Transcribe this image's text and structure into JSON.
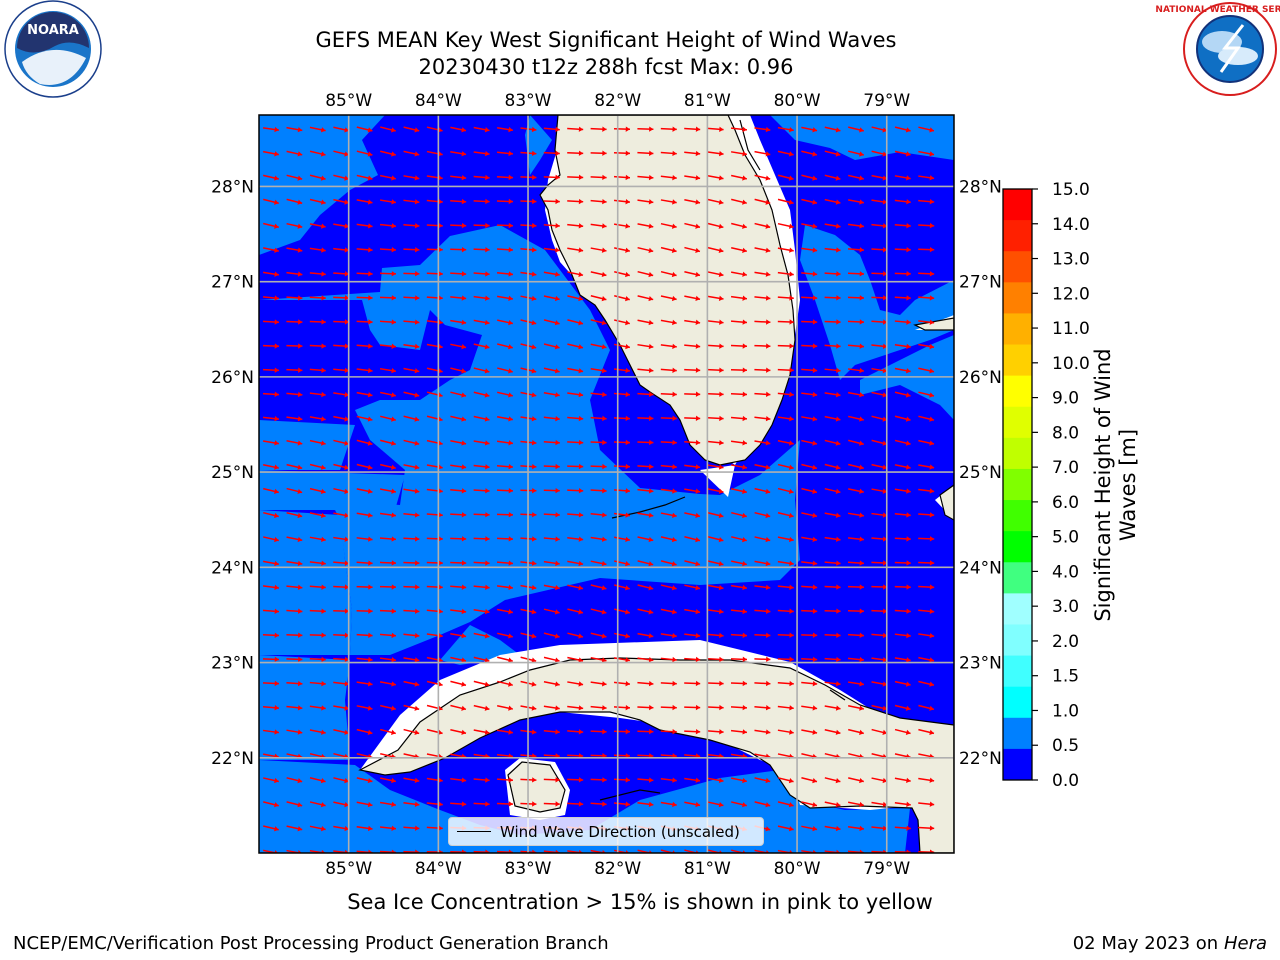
{
  "title": {
    "line1": "GEFS MEAN Key West Significant Height of Wind Waves",
    "line2": "20230430 t12z 288h fcst   Max: 0.96"
  },
  "logos": {
    "left": {
      "text": "NOARA",
      "ring_text": "NATIONAL OCEANIC AND ATMOSPHERIC ADMINISTRATION",
      "bottom_text": "U.S. DEPARTMENT OF COMMERCE"
    },
    "right": {
      "ring_text": "NATIONAL WEATHER SERVICE"
    }
  },
  "map": {
    "lon_ticks": [
      "85°W",
      "84°W",
      "83°W",
      "82°W",
      "81°W",
      "80°W",
      "79°W"
    ],
    "lon_values": [
      -85,
      -84,
      -83,
      -82,
      -81,
      -80,
      -79
    ],
    "lat_ticks": [
      "28°N",
      "27°N",
      "26°N",
      "25°N",
      "24°N",
      "23°N",
      "22°N"
    ],
    "lat_values": [
      28,
      27,
      26,
      25,
      24,
      23,
      22
    ],
    "lon_range": [
      -86.0,
      -78.25
    ],
    "lat_range": [
      21.0,
      28.75
    ],
    "colors": {
      "land": "#eeedde",
      "band_0": "#0000ff",
      "band_05": "#0080ff",
      "arrow": "#ff0000",
      "grid": "#b0b0b0",
      "coast": "#000000"
    },
    "arrow_icon": "red-arrow-icon"
  },
  "colorbar": {
    "ticks": [
      "0.0",
      "0.5",
      "1.0",
      "1.5",
      "2.0",
      "3.0",
      "4.0",
      "5.0",
      "6.0",
      "7.0",
      "8.0",
      "9.0",
      "10.0",
      "11.0",
      "12.0",
      "13.0",
      "14.0",
      "15.0"
    ],
    "colors": [
      "#0000ff",
      "#0080ff",
      "#00ffff",
      "#40ffff",
      "#80ffff",
      "#a0ffff",
      "#40ff80",
      "#00ff00",
      "#40ff00",
      "#80ff00",
      "#c0ff00",
      "#e0ff00",
      "#ffff00",
      "#ffd000",
      "#ffb000",
      "#ff8000",
      "#ff5000",
      "#ff2000",
      "#ff0000"
    ],
    "title_line1": "Significant Height of Wind",
    "title_line2": "Waves [m]"
  },
  "legend": {
    "label": "Wind Wave Direction (unscaled)"
  },
  "notes": {
    "sea_ice": "Sea Ice Concentration > 15% is shown in pink to yellow",
    "footer_left": "NCEP/EMC/Verification Post Processing Product Generation Branch",
    "footer_date": "02 May 2023 on",
    "footer_host": "Hera"
  }
}
